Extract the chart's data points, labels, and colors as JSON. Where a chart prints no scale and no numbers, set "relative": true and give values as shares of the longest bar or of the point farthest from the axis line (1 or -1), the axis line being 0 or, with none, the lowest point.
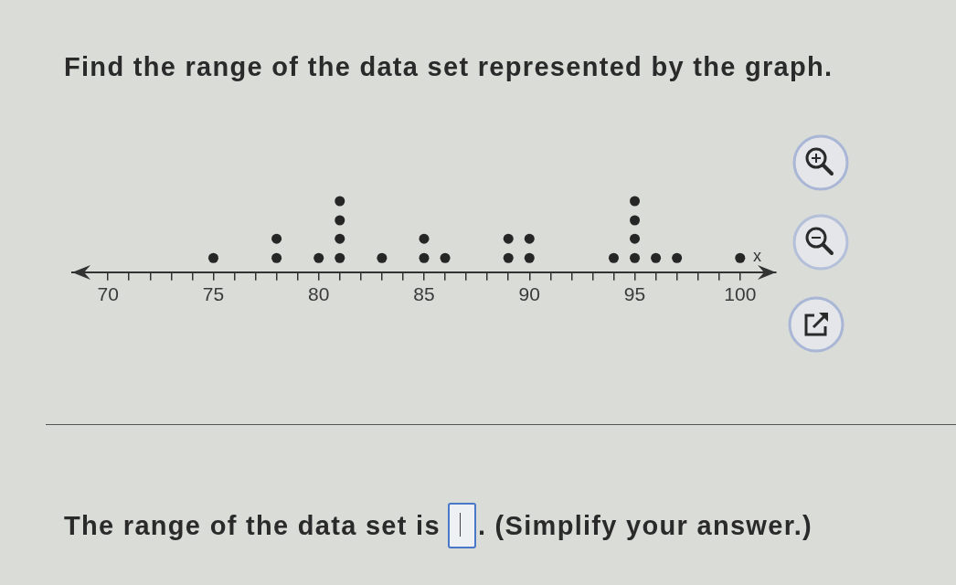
{
  "chart_data": {
    "type": "scatter",
    "title": "Find the range of the data set represented by the graph.",
    "xlabel": "x",
    "annotations": [
      "The range of the data set is",
      ". (Simplify your answer.)"
    ],
    "x": [
      75,
      78,
      78,
      80,
      81,
      81,
      81,
      81,
      83,
      85,
      85,
      86,
      89,
      89,
      90,
      90,
      94,
      95,
      95,
      95,
      95,
      96,
      97,
      100
    ],
    "values": [
      0.2,
      0.2,
      0.47,
      0.2,
      0.2,
      0.47,
      0.73,
      1,
      0.2,
      0.2,
      0.47,
      0.2,
      0.2,
      0.47,
      0.2,
      0.47,
      0.2,
      0.2,
      0.47,
      0.73,
      1,
      0.2,
      0.2,
      0.2
    ],
    "relative": true,
    "color": "#262626",
    "marker": "circle",
    "xlim": [
      68.3,
      101.7
    ],
    "xticks": [
      70,
      {
        "value": 71,
        "label": null
      },
      {
        "value": 72,
        "label": null
      },
      {
        "value": 73,
        "label": null
      },
      {
        "value": 74,
        "label": null
      },
      75,
      {
        "value": 76,
        "label": null
      },
      {
        "value": 77,
        "label": null
      },
      {
        "value": 78,
        "label": null
      },
      {
        "value": 79,
        "label": null
      },
      80,
      {
        "value": 81,
        "label": null
      },
      {
        "value": 82,
        "label": null
      },
      {
        "value": 83,
        "label": null
      },
      {
        "value": 84,
        "label": null
      },
      85,
      {
        "value": 86,
        "label": null
      },
      {
        "value": 87,
        "label": null
      },
      {
        "value": 88,
        "label": null
      },
      {
        "value": 89,
        "label": null
      },
      90,
      {
        "value": 91,
        "label": null
      },
      {
        "value": 92,
        "label": null
      },
      {
        "value": 93,
        "label": null
      },
      {
        "value": 94,
        "label": null
      },
      95,
      {
        "value": 96,
        "label": null
      },
      {
        "value": 97,
        "label": null
      },
      {
        "value": 98,
        "label": null
      },
      {
        "value": 99,
        "label": null
      },
      100
    ],
    "tick_labels": "x"
  }
}
